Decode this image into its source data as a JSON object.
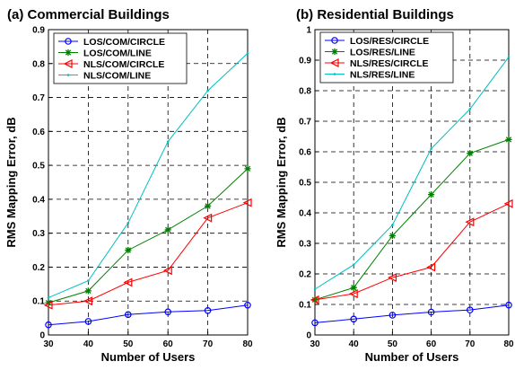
{
  "colors": {
    "LOS_CIRCLE": "#0000ff",
    "LOS_LINE": "#008000",
    "NLS_CIRCLE": "#ff0000",
    "NLS_LINE": "#00bfbf"
  },
  "chart_data": [
    {
      "type": "line",
      "title": "(a)  Commercial Buildings",
      "xlabel": "Number of Users",
      "ylabel": "RMS Mapping Error,  dB",
      "x": [
        30,
        40,
        50,
        60,
        70,
        80
      ],
      "xlim": [
        30,
        80
      ],
      "ylim": [
        0,
        0.9
      ],
      "xticks": [
        "30",
        "40",
        "50",
        "60",
        "70",
        "80"
      ],
      "yticks": [
        "0",
        "0.1",
        "0.2",
        "0.3",
        "0.4",
        "0.5",
        "0.6",
        "0.7",
        "0.8",
        "0.9"
      ],
      "grid": true,
      "legend_position": "top-left",
      "series": [
        {
          "name": "LOS/COM/CIRCLE",
          "marker": "circle",
          "color_key": "LOS_CIRCLE",
          "values": [
            0.03,
            0.04,
            0.06,
            0.068,
            0.072,
            0.088
          ]
        },
        {
          "name": "LOS/COM/LINE",
          "marker": "star",
          "color_key": "LOS_LINE",
          "values": [
            0.095,
            0.13,
            0.25,
            0.31,
            0.38,
            0.49
          ]
        },
        {
          "name": "NLS/COM/CIRCLE",
          "marker": "triangle-left",
          "color_key": "NLS_CIRCLE",
          "values": [
            0.088,
            0.1,
            0.155,
            0.19,
            0.345,
            0.39
          ]
        },
        {
          "name": "NLS/COM/LINE",
          "marker": "point",
          "color_key": "NLS_LINE",
          "values": [
            0.11,
            0.16,
            0.33,
            0.57,
            0.72,
            0.83
          ]
        }
      ]
    },
    {
      "type": "line",
      "title": "(b)  Residential Buildings",
      "xlabel": "Number of Users",
      "ylabel": "RMS Mapping Error,  dB",
      "x": [
        30,
        40,
        50,
        60,
        70,
        80
      ],
      "xlim": [
        30,
        80
      ],
      "ylim": [
        0,
        1
      ],
      "xticks": [
        "30",
        "40",
        "50",
        "60",
        "70",
        "80"
      ],
      "yticks": [
        "0",
        "0.1",
        "0.2",
        "0.3",
        "0.4",
        "0.5",
        "0.6",
        "0.7",
        "0.8",
        "0.9",
        "1"
      ],
      "grid": true,
      "legend_position": "top-left",
      "series": [
        {
          "name": "LOS/RES/CIRCLE",
          "marker": "circle",
          "color_key": "LOS_CIRCLE",
          "values": [
            0.04,
            0.052,
            0.065,
            0.075,
            0.082,
            0.098
          ]
        },
        {
          "name": "LOS/RES/LINE",
          "marker": "star",
          "color_key": "LOS_LINE",
          "values": [
            0.115,
            0.155,
            0.325,
            0.46,
            0.595,
            0.64
          ]
        },
        {
          "name": "NLS/RES/CIRCLE",
          "marker": "triangle-left",
          "color_key": "NLS_CIRCLE",
          "values": [
            0.115,
            0.135,
            0.188,
            0.222,
            0.37,
            0.43
          ]
        },
        {
          "name": "NLS/RES/LINE",
          "marker": "point",
          "color_key": "NLS_LINE",
          "values": [
            0.15,
            0.23,
            0.36,
            0.61,
            0.74,
            0.91
          ]
        }
      ]
    }
  ]
}
